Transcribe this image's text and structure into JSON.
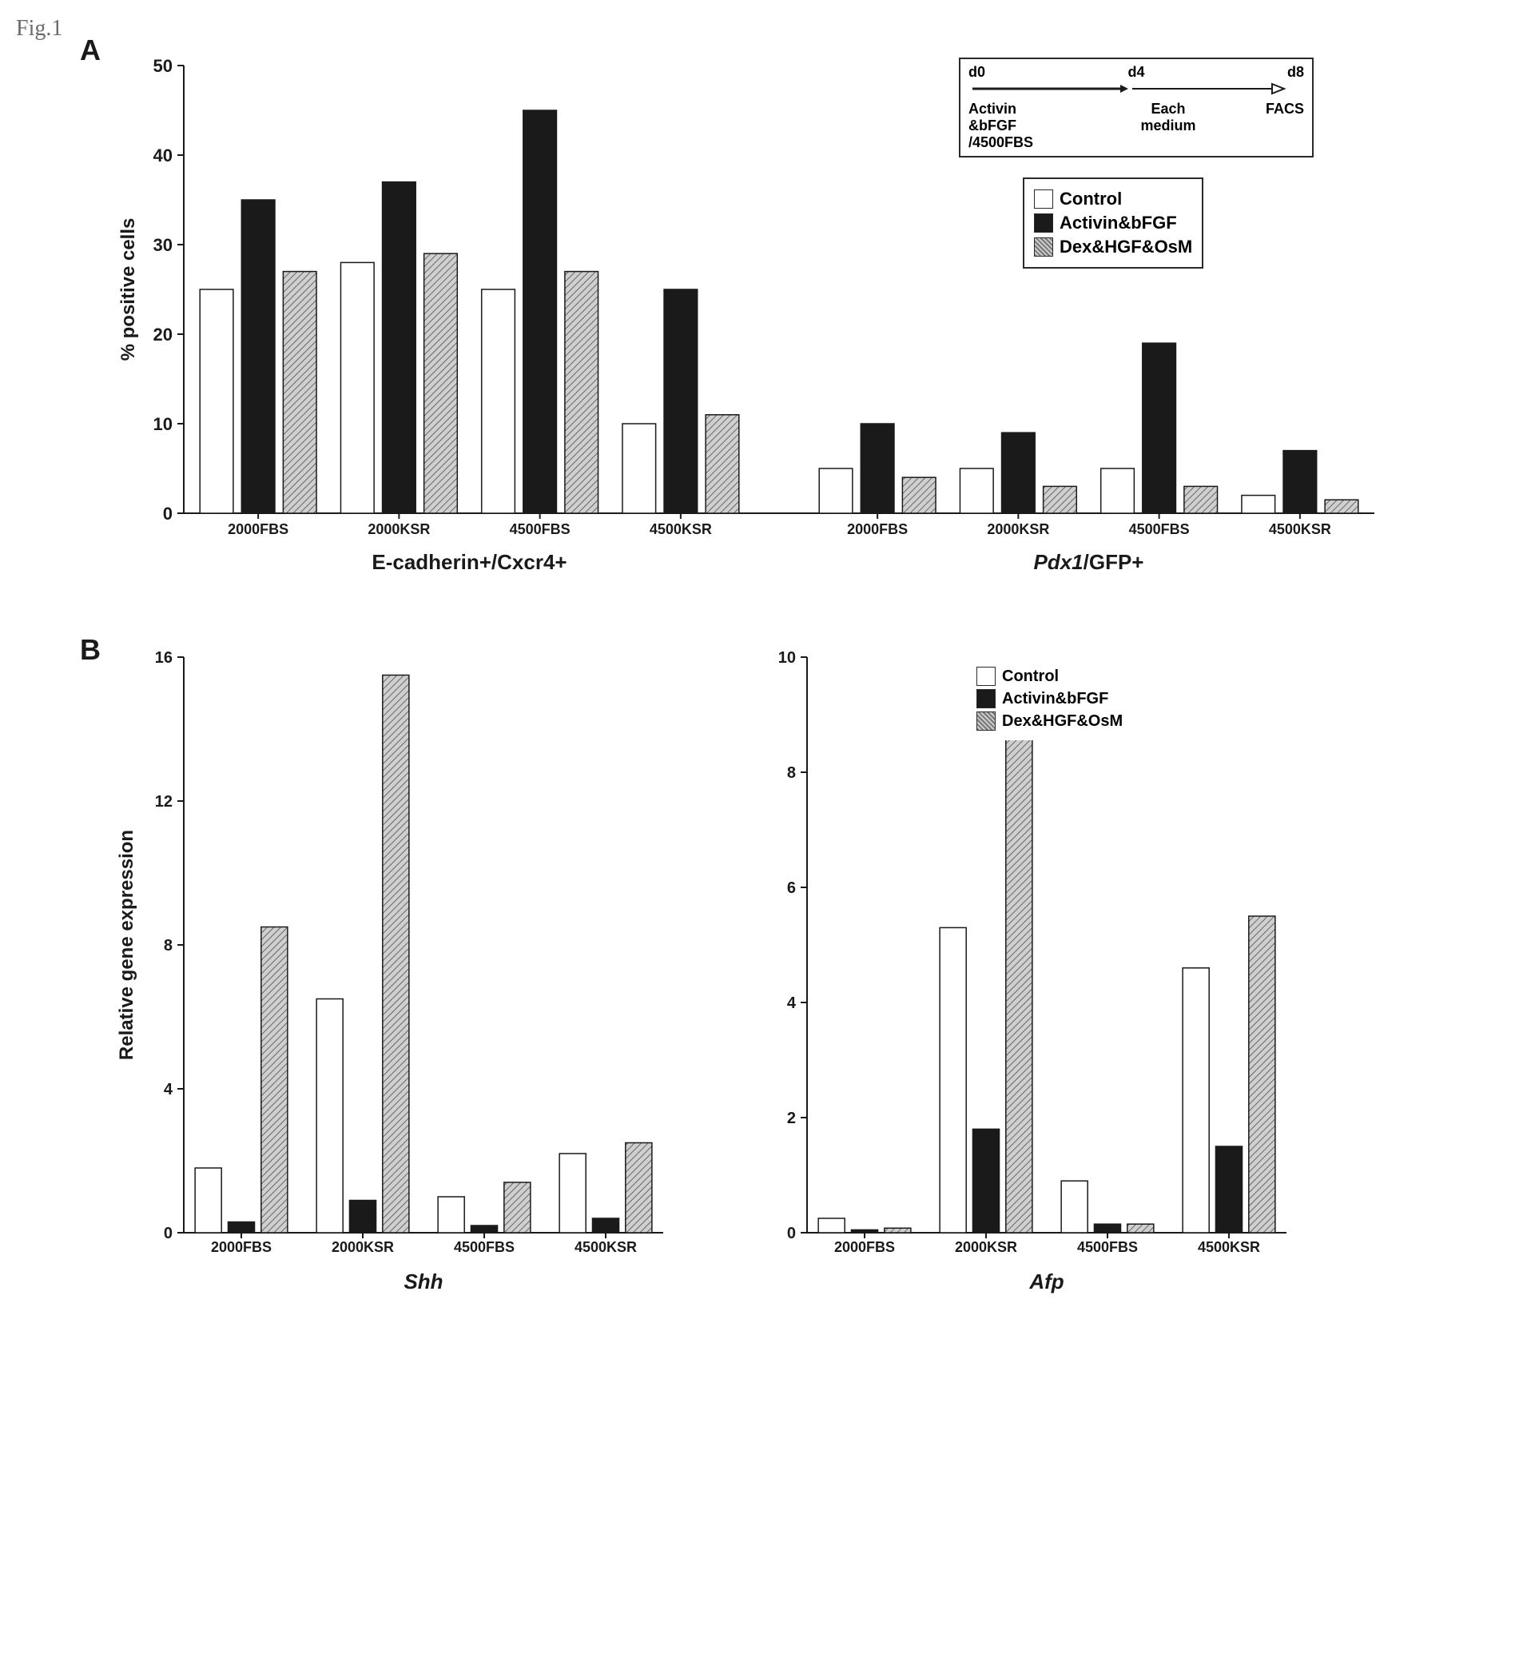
{
  "figure_label": "Fig.1",
  "panelA": {
    "letter": "A",
    "ylabel": "% positive cells",
    "ylabel_fontsize": 24,
    "ylim": [
      0,
      50
    ],
    "ytick_step": 10,
    "categories": [
      "2000FBS",
      "2000KSR",
      "4500FBS",
      "4500KSR"
    ],
    "category_fontsize": 18,
    "group_labels": [
      "E-cadherin+/Cxcr4+",
      "Pdx1/GFP+"
    ],
    "group_label_fontsize": 26,
    "series_names": [
      "Control",
      "Activin&bFGF",
      "Dex&HGF&OsM"
    ],
    "series_fills": [
      "#ffffff",
      "#1a1a1a",
      "hatch"
    ],
    "bar_border": "#1a1a1a",
    "group1_values": {
      "Control": [
        25,
        28,
        25,
        10
      ],
      "Activin&bFGF": [
        35,
        37,
        45,
        25
      ],
      "Dex&HGF&OsM": [
        27,
        29,
        27,
        11
      ]
    },
    "group2_values": {
      "Control": [
        5,
        5,
        5,
        2
      ],
      "Activin&bFGF": [
        10,
        9,
        19,
        7
      ],
      "Dex&HGF&OsM": [
        4,
        3,
        3,
        1.5
      ]
    },
    "bar_width": 0.8,
    "axis_color": "#1a1a1a",
    "axis_width": 2,
    "diagram_text": {
      "d0": "d0",
      "d4": "d4",
      "d8": "d8",
      "line1": "Activin",
      "line2": "&bFGF",
      "line3": "/4500FBS",
      "mid": "Each",
      "mid2": "medium",
      "right": "FACS"
    }
  },
  "panelB": {
    "letter": "B",
    "ylabel": "Relative gene expression",
    "ylabel_fontsize": 24,
    "categories": [
      "2000FBS",
      "2000KSR",
      "4500FBS",
      "4500KSR"
    ],
    "category_fontsize": 18,
    "series_names": [
      "Control",
      "Activin&bFGF",
      "Dex&HGF&OsM"
    ],
    "series_fills": [
      "#ffffff",
      "#1a1a1a",
      "hatch"
    ],
    "bar_border": "#1a1a1a",
    "axis_color": "#1a1a1a",
    "axis_width": 2,
    "bar_width": 0.8,
    "chart_shh": {
      "title": "Shh",
      "title_italic": true,
      "title_fontsize": 26,
      "ylim": [
        0,
        16
      ],
      "ytick_step": 4,
      "values": {
        "Control": [
          1.8,
          6.5,
          1.0,
          2.2
        ],
        "Activin&bFGF": [
          0.3,
          0.9,
          0.2,
          0.4
        ],
        "Dex&HGF&OsM": [
          8.5,
          15.5,
          1.4,
          2.5
        ]
      }
    },
    "chart_afp": {
      "title": "Afp",
      "title_italic": true,
      "title_fontsize": 26,
      "ylim": [
        0,
        10
      ],
      "ytick_step": 2,
      "values": {
        "Control": [
          0.25,
          5.3,
          0.9,
          4.6
        ],
        "Activin&bFGF": [
          0.05,
          1.8,
          0.15,
          1.5
        ],
        "Dex&HGF&OsM": [
          0.08,
          8.8,
          0.15,
          5.5
        ]
      }
    }
  },
  "colors": {
    "text": "#1a1a1a",
    "background": "#ffffff"
  }
}
